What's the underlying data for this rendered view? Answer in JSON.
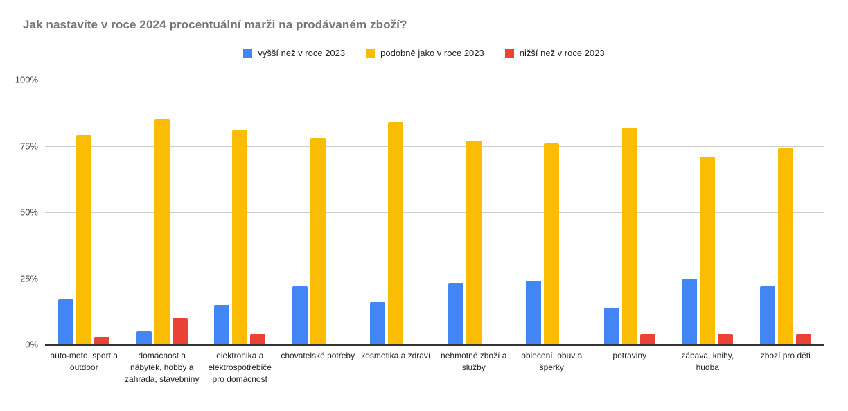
{
  "page": {
    "background": "#ffffff"
  },
  "colors": {
    "title_text": "#757575",
    "legend_text": "#222222",
    "tick_label": "#444444",
    "category_label": "#222222",
    "gridline": "#cccccc",
    "baseline": "#333333"
  },
  "chart_data": {
    "type": "bar",
    "title": "Jak nastavíte v roce 2024 procentuální marži na prodávaném zboží?",
    "categories": [
      "auto-moto, sport a outdoor",
      "domácnost a nábytek, hobby a zahrada, stavebniny",
      "elektronika a elektrospotřebiče pro domácnost",
      "chovatelské potřeby",
      "kosmetika a zdraví",
      "nehmotné zboží a služby",
      "oblečení, obuv a šperky",
      "potraviny",
      "zábava, knihy, hudba",
      "zboží pro děti"
    ],
    "series": [
      {
        "name": "vyšší než v roce 2023",
        "color": "#4285F4",
        "values": [
          17,
          5,
          15,
          22,
          16,
          23,
          24,
          14,
          25,
          22
        ]
      },
      {
        "name": "podobně jako v roce 2023",
        "color": "#FBBC04",
        "values": [
          79,
          85,
          81,
          78,
          84,
          77,
          76,
          82,
          71,
          74
        ]
      },
      {
        "name": "nižší než v roce 2023",
        "color": "#EA4335",
        "values": [
          3,
          10,
          4,
          0,
          0,
          0,
          0,
          4,
          4,
          4
        ]
      }
    ],
    "xlabel": "",
    "ylabel": "",
    "ylim": [
      0,
      100
    ],
    "yticks": [
      "0%",
      "25%",
      "50%",
      "75%",
      "100%"
    ],
    "grid": true,
    "legend_position": "top"
  }
}
